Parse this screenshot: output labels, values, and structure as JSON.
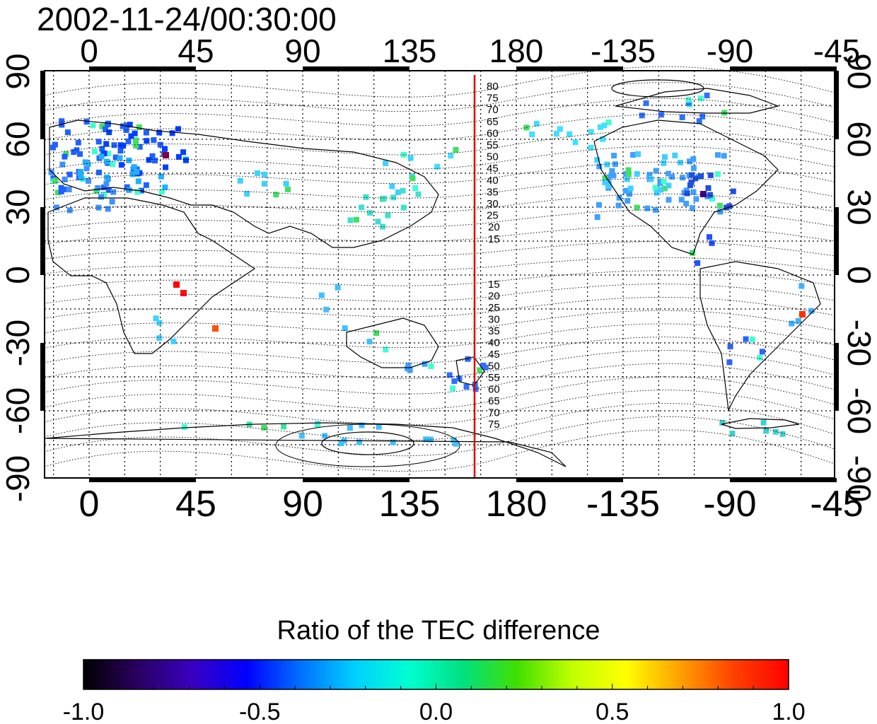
{
  "title": "2002-11-24/00:30:00",
  "map": {
    "top_lon_labels": [
      "0",
      "45",
      "90",
      "135",
      "180",
      "-135",
      "-90",
      "-45"
    ],
    "bottom_lon_labels": [
      "0",
      "45",
      "90",
      "135",
      "180",
      "-135",
      "-90",
      "-45"
    ],
    "left_lat_labels": [
      "90",
      "60",
      "30",
      "0",
      "-30",
      "-60",
      "-90"
    ],
    "right_lat_labels": [
      "90",
      "60",
      "30",
      "0",
      "-30",
      "-60",
      "-90"
    ],
    "contour_labels_north": [
      "80",
      "75",
      "70",
      "65",
      "60",
      "55",
      "50",
      "45",
      "40",
      "35",
      "30",
      "25",
      "20",
      "15"
    ],
    "contour_labels_south": [
      "15",
      "20",
      "25",
      "30",
      "35",
      "40",
      "45",
      "50",
      "55",
      "60",
      "65",
      "70",
      "75"
    ],
    "meridian_line_color": "#e00000"
  },
  "colorbar": {
    "title": "Ratio of the TEC difference",
    "tick_labels": [
      "-1.0",
      "-0.5",
      "0.0",
      "0.5",
      "1.0"
    ],
    "colors": [
      "#000000",
      "#2a0060",
      "#3a00c0",
      "#0000ff",
      "#0070ff",
      "#00d0ff",
      "#00ffd0",
      "#00e080",
      "#40e000",
      "#c0ff00",
      "#ffff00",
      "#ffa000",
      "#ff4000",
      "#ff0000"
    ]
  }
}
